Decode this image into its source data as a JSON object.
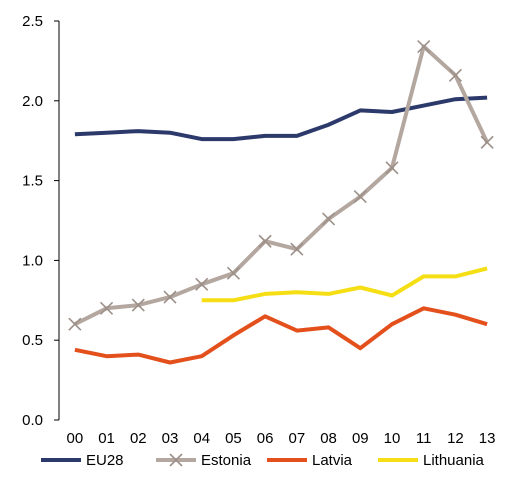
{
  "chart_data": {
    "type": "line",
    "title": "",
    "xlabel": "",
    "ylabel": "",
    "categories": [
      "00",
      "01",
      "02",
      "03",
      "04",
      "05",
      "06",
      "07",
      "08",
      "09",
      "10",
      "11",
      "12",
      "13"
    ],
    "ylim": [
      0,
      2.5
    ],
    "yticks": [
      "0.0",
      "0.5",
      "1.0",
      "1.5",
      "2.0",
      "2.5"
    ],
    "grid": false,
    "legend_position": "bottom",
    "series": [
      {
        "name": "EU28",
        "color": "#2b3a6b",
        "marker": "none",
        "values": [
          1.79,
          1.8,
          1.81,
          1.8,
          1.76,
          1.76,
          1.78,
          1.78,
          1.85,
          1.94,
          1.93,
          1.97,
          2.01,
          2.02
        ]
      },
      {
        "name": "Estonia",
        "color": "#b3a7a0",
        "marker": "x",
        "values": [
          0.6,
          0.7,
          0.72,
          0.77,
          0.85,
          0.92,
          1.12,
          1.07,
          1.26,
          1.4,
          1.58,
          2.34,
          2.16,
          1.74
        ]
      },
      {
        "name": "Latvia",
        "color": "#e3501c",
        "marker": "none",
        "values": [
          0.44,
          0.4,
          0.41,
          0.36,
          0.4,
          0.53,
          0.65,
          0.56,
          0.58,
          0.45,
          0.6,
          0.7,
          0.66,
          0.6
        ]
      },
      {
        "name": "Lithuania",
        "color": "#f5de14",
        "marker": "none",
        "values": [
          null,
          null,
          null,
          null,
          0.75,
          0.75,
          0.79,
          0.8,
          0.79,
          0.83,
          0.78,
          0.9,
          0.9,
          0.95
        ]
      }
    ]
  }
}
